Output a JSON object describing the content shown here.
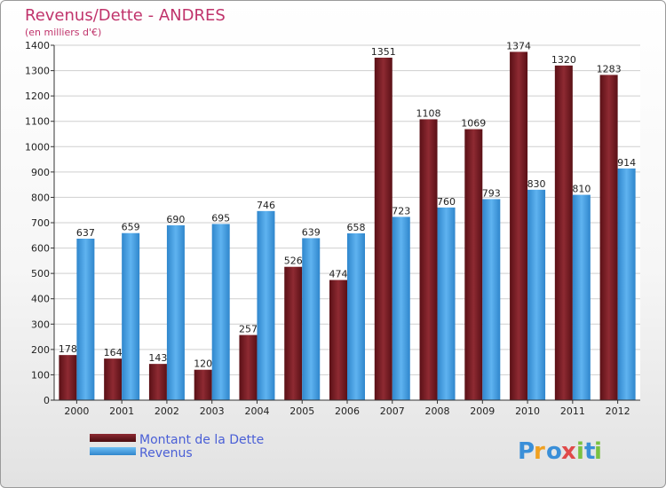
{
  "chart_data": {
    "type": "bar",
    "title": "Revenus/Dette - ANDRES",
    "subtitle": "(en milliers d'€)",
    "categories": [
      "2000",
      "2001",
      "2002",
      "2003",
      "2004",
      "2005",
      "2006",
      "2007",
      "2008",
      "2009",
      "2010",
      "2011",
      "2012"
    ],
    "series": [
      {
        "name": "Montant de la Dette",
        "color": "#7a1d24",
        "values": [
          178,
          164,
          143,
          120,
          257,
          526,
          474,
          1351,
          1108,
          1069,
          1374,
          1320,
          1283
        ]
      },
      {
        "name": "Revenus",
        "color": "#4aa3e8",
        "values": [
          637,
          659,
          690,
          695,
          746,
          639,
          658,
          723,
          760,
          793,
          830,
          810,
          914
        ]
      }
    ],
    "ylim": [
      0,
      1400
    ],
    "yticks": [
      0,
      100,
      200,
      300,
      400,
      500,
      600,
      700,
      800,
      900,
      1000,
      1100,
      1200,
      1300,
      1400
    ],
    "grid": true,
    "legend_position": "bottom-left"
  },
  "logo": {
    "letters": [
      "P",
      "r",
      "o",
      "x",
      "i",
      "t",
      "i"
    ],
    "colors": [
      "#3a8fd8",
      "#f0a020",
      "#3a8fd8",
      "#e04a4a",
      "#7ac142",
      "#3a8fd8",
      "#7ac142"
    ]
  }
}
